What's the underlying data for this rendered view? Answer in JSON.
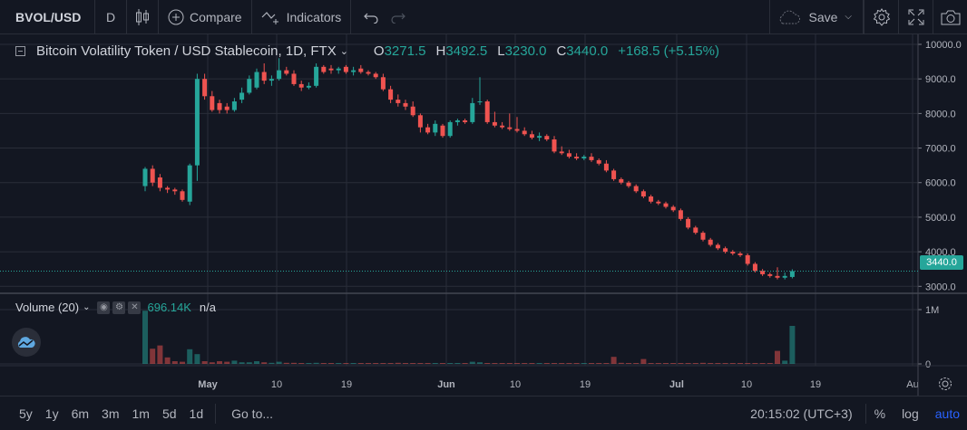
{
  "toolbar": {
    "symbol": "BVOL/USD",
    "interval": "D",
    "compare_label": "Compare",
    "indicators_label": "Indicators",
    "save_label": "Save"
  },
  "legend": {
    "title": "Bitcoin Volatility Token / USD Stablecoin, 1D, FTX",
    "open_key": "O",
    "open": "3271.5",
    "high_key": "H",
    "high": "3492.5",
    "low_key": "L",
    "low": "3230.0",
    "close_key": "C",
    "close": "3440.0",
    "change": "+168.5 (+5.15%)"
  },
  "volume_legend": {
    "name": "Volume (20)",
    "value": "696.14K",
    "ma_value": "n/a"
  },
  "price_tag": "3440.0",
  "bottombar": {
    "ranges": [
      "5y",
      "1y",
      "6m",
      "3m",
      "1m",
      "5d",
      "1d"
    ],
    "goto_label": "Go to...",
    "clock": "20:15:02 (UTC+3)",
    "percent_label": "%",
    "log_label": "log",
    "auto_label": "auto"
  },
  "colors": {
    "up": "#26a69a",
    "down": "#ef5350",
    "accent": "#2962ff",
    "background": "#131722",
    "grid": "#2a2e39"
  },
  "chart_data": {
    "type": "candlestick",
    "y_ticks": [
      "10000.0",
      "9000.0",
      "8000.0",
      "7000.0",
      "6000.0",
      "5000.0",
      "4000.0",
      "3000.0"
    ],
    "volume_ticks": [
      "1M",
      "0"
    ],
    "x_ticks": [
      "May",
      "10",
      "19",
      "Jun",
      "10",
      "19",
      "Jul",
      "10",
      "19",
      "Au"
    ],
    "candles": [
      {
        "o": 5900,
        "h": 6450,
        "l": 5750,
        "c": 6400
      },
      {
        "o": 6400,
        "h": 6500,
        "l": 5900,
        "c": 6000
      },
      {
        "o": 6150,
        "h": 6250,
        "l": 5750,
        "c": 5850
      },
      {
        "o": 5850,
        "h": 5900,
        "l": 5700,
        "c": 5800
      },
      {
        "o": 5800,
        "h": 5850,
        "l": 5650,
        "c": 5750
      },
      {
        "o": 5750,
        "h": 5800,
        "l": 5450,
        "c": 5500
      },
      {
        "o": 5450,
        "h": 6550,
        "l": 5350,
        "c": 6500
      },
      {
        "o": 6500,
        "h": 9150,
        "l": 6050,
        "c": 9000
      },
      {
        "o": 9000,
        "h": 9150,
        "l": 8400,
        "c": 8500
      },
      {
        "o": 8500,
        "h": 8650,
        "l": 8050,
        "c": 8100
      },
      {
        "o": 8300,
        "h": 8400,
        "l": 8000,
        "c": 8100
      },
      {
        "o": 8200,
        "h": 8300,
        "l": 8000,
        "c": 8100
      },
      {
        "o": 8100,
        "h": 8450,
        "l": 8050,
        "c": 8350
      },
      {
        "o": 8400,
        "h": 8750,
        "l": 8300,
        "c": 8600
      },
      {
        "o": 8600,
        "h": 9100,
        "l": 8550,
        "c": 9000
      },
      {
        "o": 8750,
        "h": 9300,
        "l": 8700,
        "c": 9200
      },
      {
        "o": 9200,
        "h": 9450,
        "l": 8850,
        "c": 8950
      },
      {
        "o": 8950,
        "h": 9100,
        "l": 8800,
        "c": 9000
      },
      {
        "o": 9000,
        "h": 9600,
        "l": 8950,
        "c": 9250
      },
      {
        "o": 9250,
        "h": 9350,
        "l": 9100,
        "c": 9150
      },
      {
        "o": 9150,
        "h": 9250,
        "l": 8800,
        "c": 8850
      },
      {
        "o": 8850,
        "h": 8950,
        "l": 8650,
        "c": 8750
      },
      {
        "o": 8750,
        "h": 8900,
        "l": 8700,
        "c": 8800
      },
      {
        "o": 8800,
        "h": 9450,
        "l": 8750,
        "c": 9350
      },
      {
        "o": 9350,
        "h": 9400,
        "l": 9150,
        "c": 9200
      },
      {
        "o": 9300,
        "h": 9400,
        "l": 9150,
        "c": 9250
      },
      {
        "o": 9250,
        "h": 9350,
        "l": 9150,
        "c": 9300
      },
      {
        "o": 9350,
        "h": 9400,
        "l": 9150,
        "c": 9200
      },
      {
        "o": 9200,
        "h": 9350,
        "l": 9100,
        "c": 9250
      },
      {
        "o": 9300,
        "h": 9400,
        "l": 9150,
        "c": 9200
      },
      {
        "o": 9200,
        "h": 9250,
        "l": 9100,
        "c": 9150
      },
      {
        "o": 9150,
        "h": 9200,
        "l": 9000,
        "c": 9050
      },
      {
        "o": 9050,
        "h": 9150,
        "l": 8650,
        "c": 8700
      },
      {
        "o": 8700,
        "h": 8800,
        "l": 8300,
        "c": 8400
      },
      {
        "o": 8400,
        "h": 8550,
        "l": 8200,
        "c": 8300
      },
      {
        "o": 8300,
        "h": 8400,
        "l": 8100,
        "c": 8200
      },
      {
        "o": 8200,
        "h": 8350,
        "l": 7900,
        "c": 7950
      },
      {
        "o": 7950,
        "h": 8000,
        "l": 7450,
        "c": 7600
      },
      {
        "o": 7600,
        "h": 7700,
        "l": 7400,
        "c": 7450
      },
      {
        "o": 7450,
        "h": 7800,
        "l": 7350,
        "c": 7700
      },
      {
        "o": 7650,
        "h": 7700,
        "l": 7300,
        "c": 7350
      },
      {
        "o": 7350,
        "h": 7800,
        "l": 7300,
        "c": 7750
      },
      {
        "o": 7750,
        "h": 7850,
        "l": 7650,
        "c": 7800
      },
      {
        "o": 7800,
        "h": 7850,
        "l": 7700,
        "c": 7750
      },
      {
        "o": 7750,
        "h": 8450,
        "l": 7700,
        "c": 8300
      },
      {
        "o": 8350,
        "h": 9050,
        "l": 8250,
        "c": 8350
      },
      {
        "o": 8350,
        "h": 8400,
        "l": 7700,
        "c": 7750
      },
      {
        "o": 7750,
        "h": 8050,
        "l": 7600,
        "c": 7650
      },
      {
        "o": 7650,
        "h": 7750,
        "l": 7550,
        "c": 7600
      },
      {
        "o": 7600,
        "h": 8000,
        "l": 7500,
        "c": 7550
      },
      {
        "o": 7550,
        "h": 7900,
        "l": 7450,
        "c": 7500
      },
      {
        "o": 7500,
        "h": 7600,
        "l": 7350,
        "c": 7400
      },
      {
        "o": 7400,
        "h": 7500,
        "l": 7250,
        "c": 7300
      },
      {
        "o": 7300,
        "h": 7450,
        "l": 7200,
        "c": 7350
      },
      {
        "o": 7350,
        "h": 7400,
        "l": 7200,
        "c": 7250
      },
      {
        "o": 7250,
        "h": 7350,
        "l": 6850,
        "c": 6900
      },
      {
        "o": 6900,
        "h": 7050,
        "l": 6800,
        "c": 6850
      },
      {
        "o": 6850,
        "h": 6950,
        "l": 6700,
        "c": 6750
      },
      {
        "o": 6750,
        "h": 6850,
        "l": 6650,
        "c": 6700
      },
      {
        "o": 6700,
        "h": 6800,
        "l": 6650,
        "c": 6750
      },
      {
        "o": 6750,
        "h": 6850,
        "l": 6600,
        "c": 6650
      },
      {
        "o": 6650,
        "h": 6700,
        "l": 6500,
        "c": 6550
      },
      {
        "o": 6550,
        "h": 6650,
        "l": 6300,
        "c": 6350
      },
      {
        "o": 6350,
        "h": 6400,
        "l": 6050,
        "c": 6100
      },
      {
        "o": 6100,
        "h": 6150,
        "l": 5950,
        "c": 6000
      },
      {
        "o": 6000,
        "h": 6050,
        "l": 5850,
        "c": 5900
      },
      {
        "o": 5900,
        "h": 5950,
        "l": 5700,
        "c": 5750
      },
      {
        "o": 5750,
        "h": 5800,
        "l": 5550,
        "c": 5600
      },
      {
        "o": 5600,
        "h": 5650,
        "l": 5400,
        "c": 5450
      },
      {
        "o": 5450,
        "h": 5500,
        "l": 5350,
        "c": 5400
      },
      {
        "o": 5400,
        "h": 5450,
        "l": 5250,
        "c": 5300
      },
      {
        "o": 5300,
        "h": 5350,
        "l": 5150,
        "c": 5200
      },
      {
        "o": 5200,
        "h": 5250,
        "l": 4900,
        "c": 4950
      },
      {
        "o": 4950,
        "h": 5000,
        "l": 4650,
        "c": 4700
      },
      {
        "o": 4700,
        "h": 4750,
        "l": 4500,
        "c": 4550
      },
      {
        "o": 4550,
        "h": 4600,
        "l": 4300,
        "c": 4350
      },
      {
        "o": 4350,
        "h": 4400,
        "l": 4150,
        "c": 4200
      },
      {
        "o": 4200,
        "h": 4250,
        "l": 4050,
        "c": 4100
      },
      {
        "o": 4100,
        "h": 4150,
        "l": 3950,
        "c": 4000
      },
      {
        "o": 4000,
        "h": 4050,
        "l": 3900,
        "c": 3950
      },
      {
        "o": 3950,
        "h": 4000,
        "l": 3850,
        "c": 3900
      },
      {
        "o": 3900,
        "h": 3950,
        "l": 3600,
        "c": 3650
      },
      {
        "o": 3650,
        "h": 3700,
        "l": 3400,
        "c": 3450
      },
      {
        "o": 3450,
        "h": 3500,
        "l": 3300,
        "c": 3350
      },
      {
        "o": 3350,
        "h": 3400,
        "l": 3250,
        "c": 3300
      },
      {
        "o": 3300,
        "h": 3550,
        "l": 3200,
        "c": 3250
      },
      {
        "o": 3250,
        "h": 3400,
        "l": 3200,
        "c": 3300
      },
      {
        "o": 3271.5,
        "h": 3492.5,
        "l": 3230,
        "c": 3440
      }
    ],
    "volumes": [
      0.98,
      0.28,
      0.34,
      0.12,
      0.05,
      0.04,
      0.27,
      0.18,
      0.05,
      0.03,
      0.05,
      0.04,
      0.06,
      0.03,
      0.03,
      0.05,
      0.03,
      0.02,
      0.04,
      0.02,
      0.02,
      0.01,
      0.01,
      0.02,
      0.01,
      0.01,
      0.01,
      0.01,
      0.01,
      0.01,
      0.01,
      0.01,
      0.01,
      0.01,
      0.02,
      0.01,
      0.01,
      0.01,
      0.01,
      0.01,
      0.01,
      0.01,
      0.01,
      0.01,
      0.04,
      0.03,
      0.01,
      0.01,
      0.01,
      0.01,
      0.01,
      0.01,
      0.01,
      0.01,
      0.01,
      0.01,
      0.01,
      0.01,
      0.01,
      0.01,
      0.01,
      0.01,
      0.01,
      0.13,
      0.02,
      0.01,
      0.01,
      0.09,
      0.01,
      0.01,
      0.01,
      0.01,
      0.01,
      0.01,
      0.01,
      0.02,
      0.01,
      0.01,
      0.01,
      0.01,
      0.01,
      0.01,
      0.01,
      0.01,
      0.01,
      0.24,
      0.06,
      0.7
    ]
  }
}
